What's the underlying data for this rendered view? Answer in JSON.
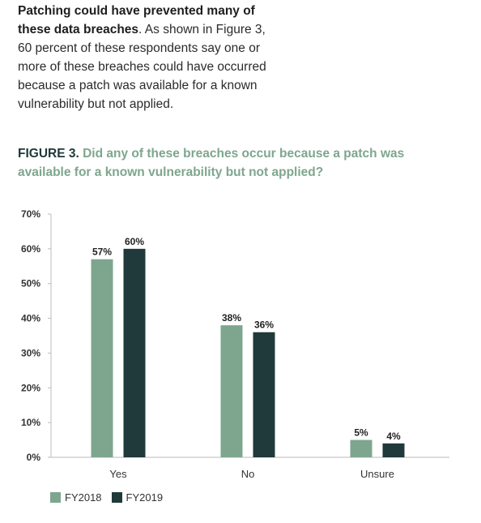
{
  "intro": {
    "lines": [
      {
        "bold": "Patching could have prevented many of",
        "text": ""
      },
      {
        "bold": "these data breaches",
        "text": ". As shown in Figure 3,"
      },
      {
        "bold": "",
        "text": "60 percent of these respondents say one or"
      },
      {
        "bold": "",
        "text": "more of these breaches could have occurred"
      },
      {
        "bold": "",
        "text": "because a patch was available for a known"
      },
      {
        "bold": "",
        "text": "vulnerability but not applied."
      }
    ]
  },
  "figure": {
    "label": "FIGURE 3.",
    "question_line1": "Did any of these breaches occur because a patch was",
    "question_line2": "available for a known vulnerability but not applied?"
  },
  "chart_data": {
    "type": "bar",
    "categories": [
      "Yes",
      "No",
      "Unsure"
    ],
    "series": [
      {
        "name": "FY2018",
        "values": [
          57,
          38,
          5
        ],
        "color": "#7ea68e"
      },
      {
        "name": "FY2019",
        "values": [
          60,
          36,
          4
        ],
        "color": "#20393a"
      }
    ],
    "data_labels": [
      [
        "57%",
        "38%",
        "5%"
      ],
      [
        "60%",
        "36%",
        "4%"
      ]
    ],
    "y_ticks": [
      "0%",
      "10%",
      "20%",
      "30%",
      "40%",
      "50%",
      "60%",
      "70%"
    ],
    "ylim": [
      0,
      70
    ],
    "unit": "%",
    "legend_position": "bottom-left",
    "grid": false
  }
}
